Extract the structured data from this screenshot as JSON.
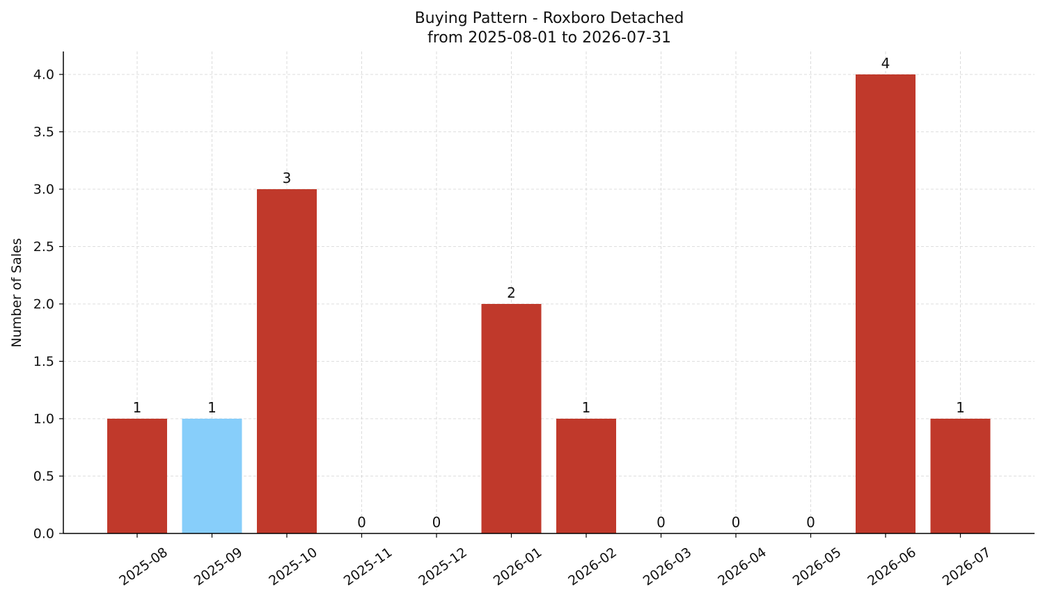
{
  "chart_data": {
    "type": "bar",
    "title": "Buying Pattern - Roxboro Detached",
    "subtitle": "from 2025-08-01 to 2026-07-31",
    "xlabel": "",
    "ylabel": "Number of Sales",
    "categories": [
      "2025-08",
      "2025-09",
      "2025-10",
      "2025-11",
      "2025-12",
      "2026-01",
      "2026-02",
      "2026-03",
      "2026-04",
      "2026-05",
      "2026-06",
      "2026-07"
    ],
    "values": [
      1,
      1,
      3,
      0,
      0,
      2,
      1,
      0,
      0,
      0,
      4,
      1
    ],
    "bar_colors": [
      "#c0392b",
      "#87cefa",
      "#c0392b",
      "#c0392b",
      "#c0392b",
      "#c0392b",
      "#c0392b",
      "#c0392b",
      "#c0392b",
      "#c0392b",
      "#c0392b",
      "#c0392b"
    ],
    "ylim": [
      0,
      4.2
    ],
    "yticks": [
      0.0,
      0.5,
      1.0,
      1.5,
      2.0,
      2.5,
      3.0,
      3.5,
      4.0
    ],
    "ytick_labels": [
      "0.0",
      "0.5",
      "1.0",
      "1.5",
      "2.0",
      "2.5",
      "3.0",
      "3.5",
      "4.0"
    ],
    "grid": true,
    "data_labels": true,
    "legend": "none"
  }
}
